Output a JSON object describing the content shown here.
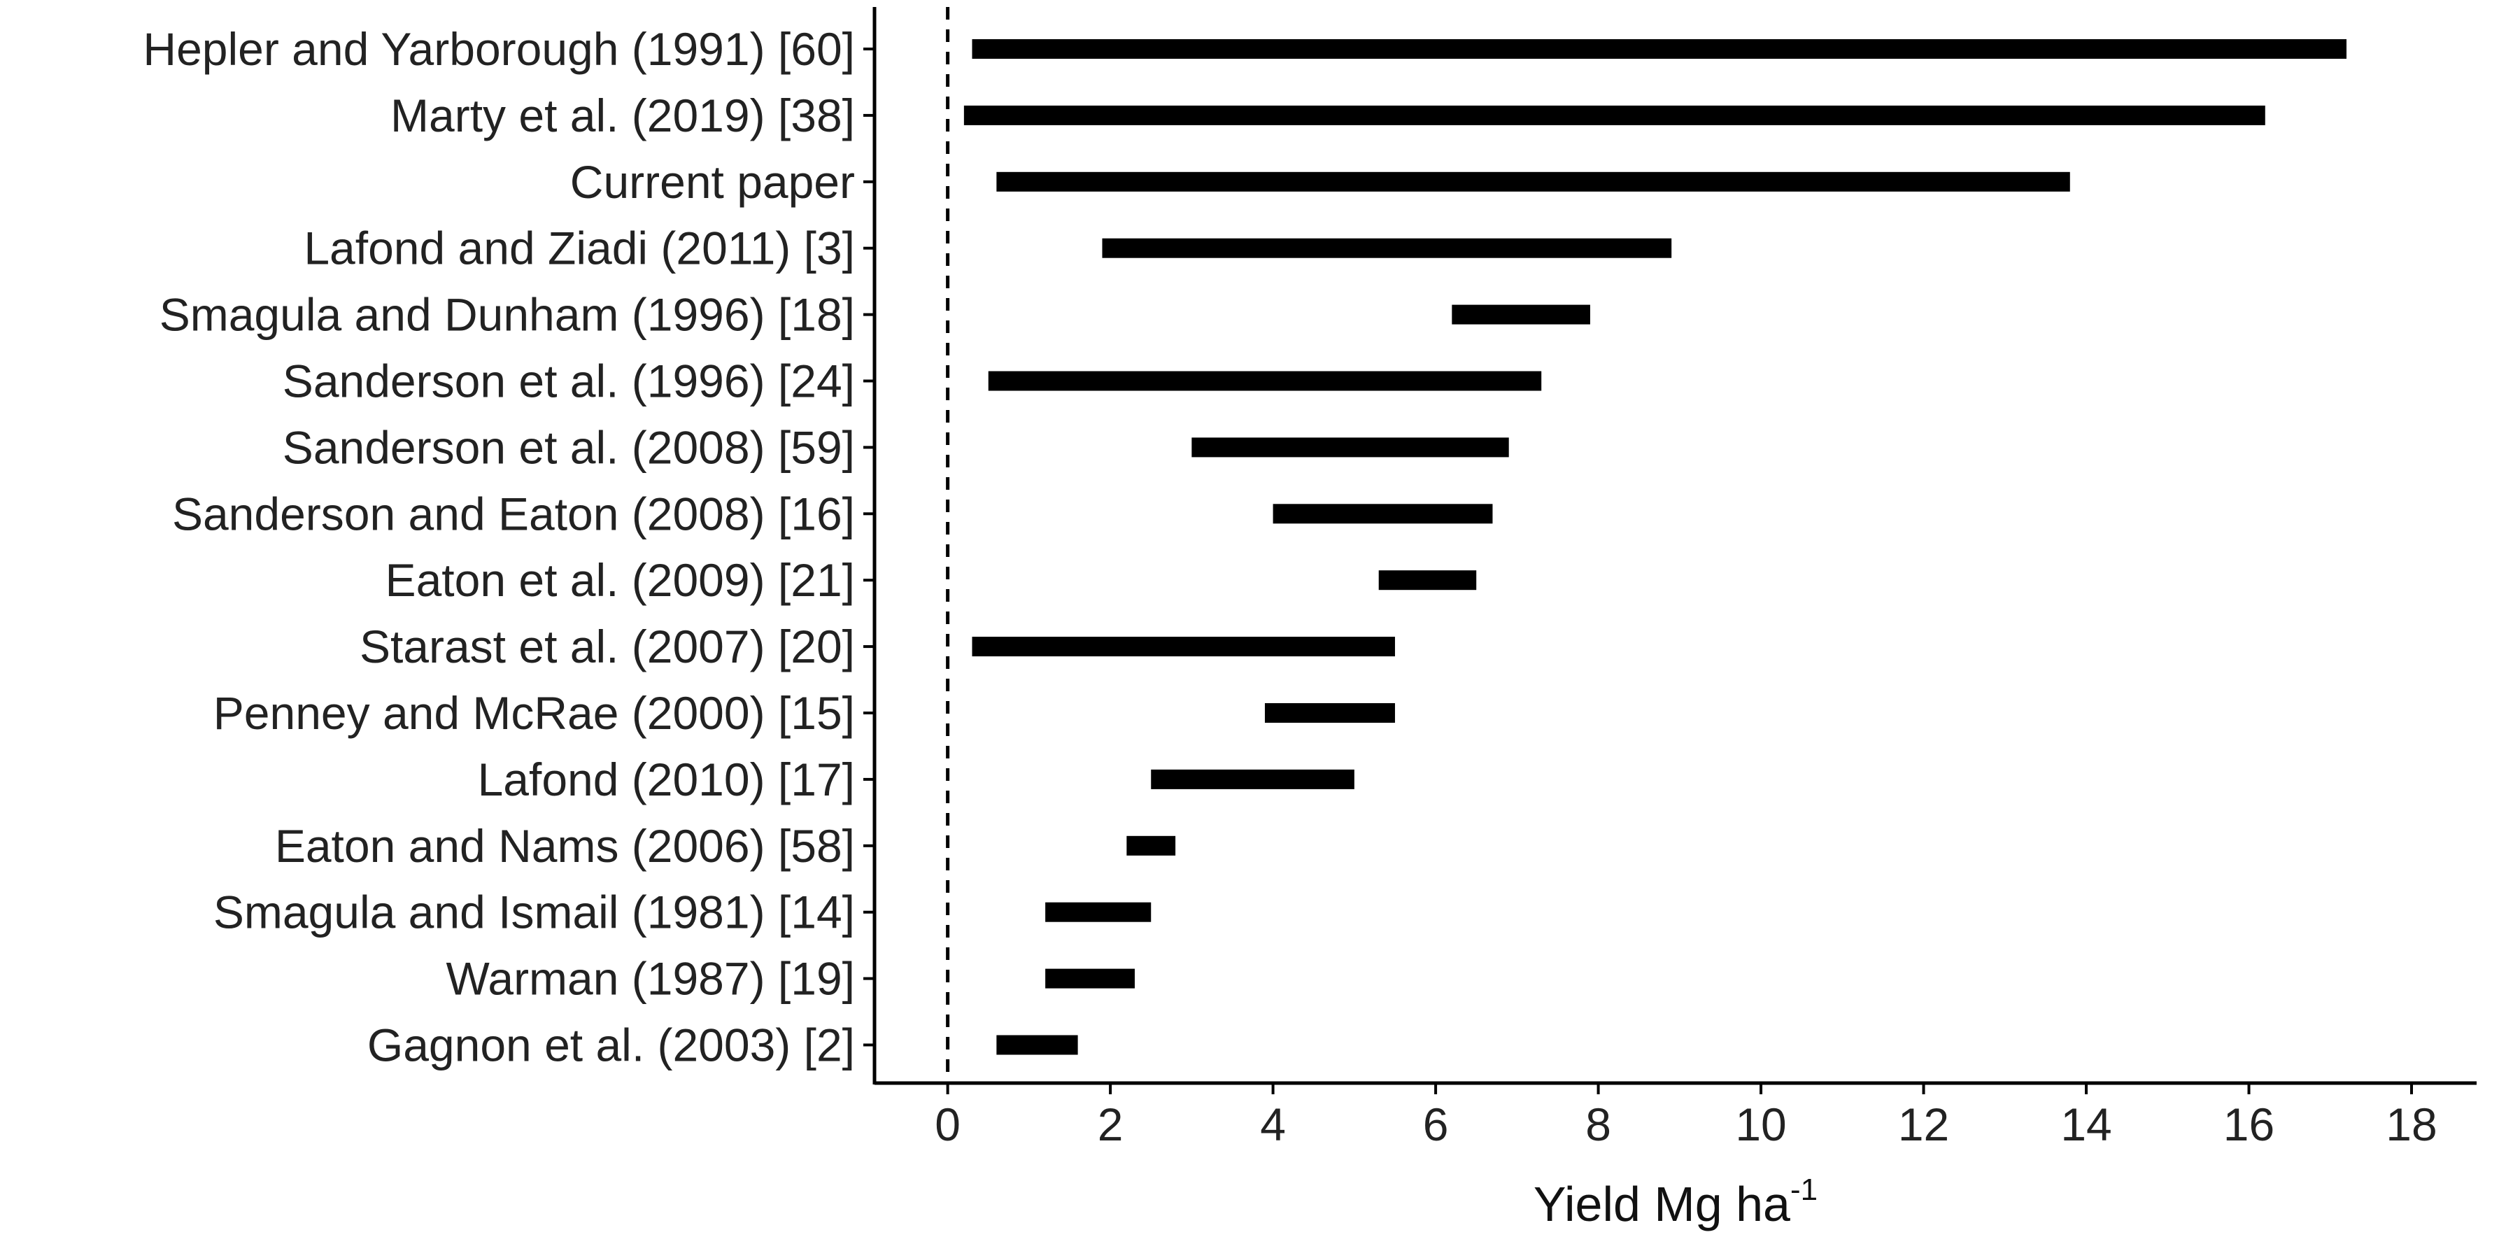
{
  "chart_data": {
    "type": "bar",
    "subtype": "horizontal-range",
    "title": "",
    "xlabel": "Yield Mg ha",
    "xlabel_superscript": "-1",
    "ylabel": "",
    "xlim": [
      -0.9,
      18.8
    ],
    "x_ticks": [
      0,
      2,
      4,
      6,
      8,
      10,
      12,
      14,
      16,
      18
    ],
    "reference_line": {
      "x": 0,
      "style": "dashed"
    },
    "grid": false,
    "legend": "none",
    "bar_color": "#000000",
    "categories": [
      "Hepler and Yarborough (1991) [60]",
      "Marty et al. (2019) [38]",
      "Current paper",
      "Lafond and Ziadi (2011) [3]",
      "Smagula and Dunham (1996) [18]",
      "Sanderson et al. (1996) [24]",
      "Sanderson et al. (2008) [59]",
      "Sanderson and Eaton (2008) [16]",
      "Eaton et al. (2009) [21]",
      "Starast et al. (2007) [20]",
      "Penney and McRae (2000) [15]",
      "Lafond (2010) [17]",
      "Eaton and Nams (2006) [58]",
      "Smagula and Ismail (1981) [14]",
      "Warman (1987) [19]",
      "Gagnon et al. (2003) [2]"
    ],
    "ranges": [
      [
        0.3,
        17.2
      ],
      [
        0.2,
        16.2
      ],
      [
        0.6,
        13.8
      ],
      [
        1.9,
        8.9
      ],
      [
        6.2,
        7.9
      ],
      [
        0.5,
        7.3
      ],
      [
        3.0,
        6.9
      ],
      [
        4.0,
        6.7
      ],
      [
        5.3,
        6.5
      ],
      [
        0.3,
        5.5
      ],
      [
        3.9,
        5.5
      ],
      [
        2.5,
        5.0
      ],
      [
        2.2,
        2.8
      ],
      [
        1.2,
        2.5
      ],
      [
        1.2,
        2.3
      ],
      [
        0.6,
        1.6
      ]
    ]
  }
}
